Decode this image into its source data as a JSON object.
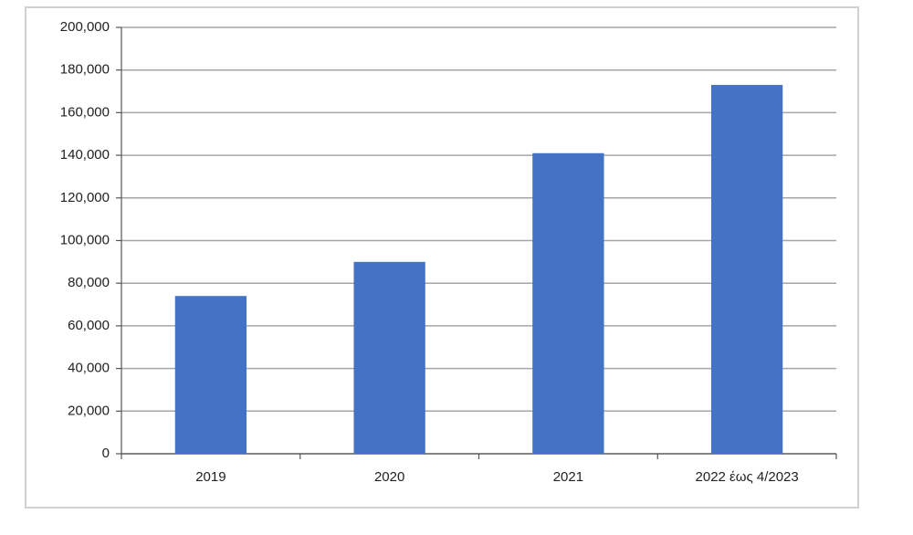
{
  "chart_data": {
    "type": "bar",
    "categories": [
      "2019",
      "2020",
      "2021",
      "2022 έως 4/2023"
    ],
    "values": [
      74000,
      90000,
      141000,
      173000
    ],
    "color": "#4472c4",
    "ylim": [
      0,
      200000
    ],
    "yticks": [
      0,
      {
        "value": 20000,
        "label": "20,000"
      },
      {
        "value": 40000,
        "label": "40,000"
      },
      {
        "value": 60000,
        "label": "60,000"
      },
      {
        "value": 80000,
        "label": "80,000"
      },
      {
        "value": 100000,
        "label": "100,000"
      },
      {
        "value": 120000,
        "label": "120,000"
      },
      {
        "value": 140000,
        "label": "140,000"
      },
      {
        "value": 160000,
        "label": "160,000"
      },
      {
        "value": 180000,
        "label": "180,000"
      },
      {
        "value": 200000,
        "label": "200,000"
      }
    ],
    "grid": true
  }
}
